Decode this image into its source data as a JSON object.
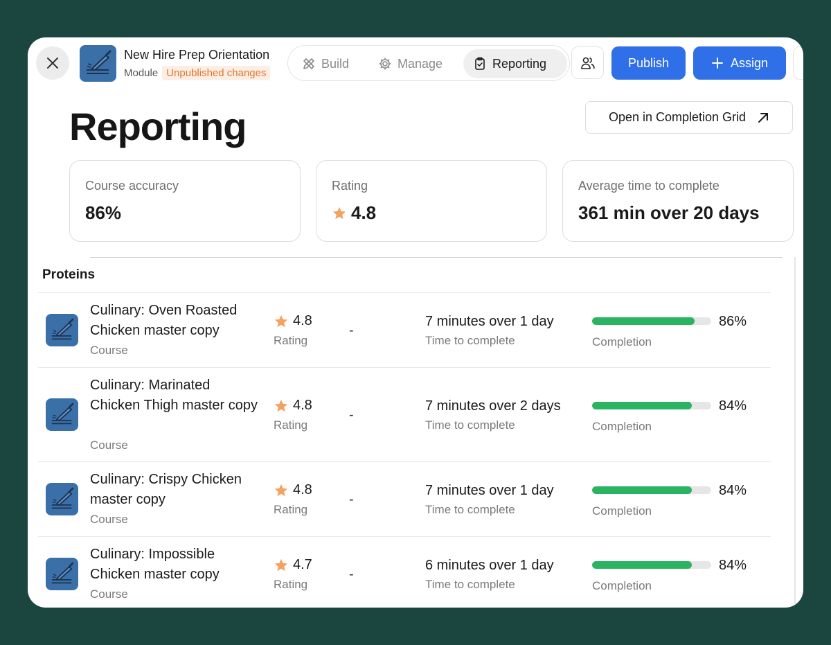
{
  "header": {
    "module_title": "New Hire Prep Orientation",
    "module_type": "Module",
    "status_badge": "Unpublished changes",
    "tabs": [
      {
        "label": "Build",
        "icon": "pencil-ruler-icon"
      },
      {
        "label": "Manage",
        "icon": "gear-icon"
      },
      {
        "label": "Reporting",
        "icon": "clipboard-check-icon",
        "active": true
      }
    ],
    "publish_label": "Publish",
    "assign_label": "Assign"
  },
  "page": {
    "title": "Reporting",
    "grid_button_label": "Open in Completion Grid"
  },
  "stats": [
    {
      "label": "Course accuracy",
      "value": "86%"
    },
    {
      "label": "Rating",
      "value": "4.8"
    },
    {
      "label": "Average time to complete",
      "value": "361 min over 20 days"
    }
  ],
  "section": {
    "title": "Proteins",
    "rating_label": "Rating",
    "time_label": "Time to complete",
    "completion_label": "Completion",
    "type_label": "Course",
    "dash": "-"
  },
  "courses": [
    {
      "name": "Culinary: Oven Roasted Chicken master copy",
      "rating": "4.8",
      "time": "7 minutes over 1 day",
      "completion_pct": 86,
      "completion": "86%"
    },
    {
      "name": "Culinary: Marinated Chicken Thigh master copy",
      "rating": "4.8",
      "time": "7 minutes over 2 days",
      "completion_pct": 84,
      "completion": "84%"
    },
    {
      "name": "Culinary: Crispy Chicken master copy",
      "rating": "4.8",
      "time": "7 minutes over 1 day",
      "completion_pct": 84,
      "completion": "84%"
    },
    {
      "name": "Culinary: Impossible Chicken master copy",
      "rating": "4.7",
      "time": "6 minutes over 1 day",
      "completion_pct": 84,
      "completion": "84%"
    }
  ],
  "colors": {
    "accent": "#2f6fe8",
    "progress": "#2ab461",
    "star": "#f4a261",
    "badge_text": "#e0762f",
    "background": "#1b4640"
  }
}
